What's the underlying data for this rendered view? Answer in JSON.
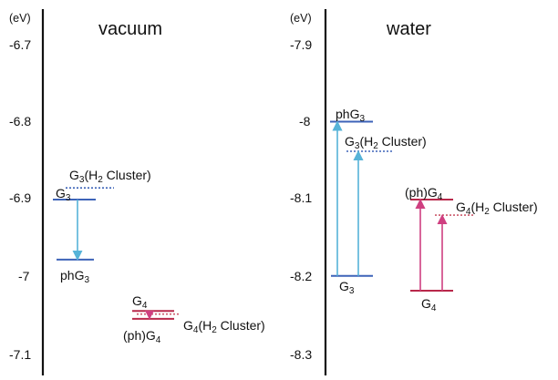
{
  "chart_data": [
    {
      "type": "energy-level diagram",
      "panel": "vacuum",
      "title": "vacuum",
      "unit_label": "(eV)",
      "ylim": [
        -7.1,
        -6.7
      ],
      "y_ticks": [
        "-6.7",
        "-6.8",
        "-6.9",
        "-7",
        "-7.1"
      ],
      "y_tick_values": [
        -6.7,
        -6.8,
        -6.9,
        -7.0,
        -7.1
      ],
      "colors": {
        "G3": "#3d63b8",
        "G4": "#b8284a",
        "arrow_G3": "#56b3d8",
        "arrow_G4": "#cf3f80"
      },
      "levels": [
        {
          "label": "G3",
          "value": -6.9,
          "color": "#3d63b8",
          "dashed": false
        },
        {
          "label": "G3(H2 Cluster)",
          "value": -6.885,
          "color": "#3d63b8",
          "dashed": true
        },
        {
          "label": "phG3",
          "value": -6.977,
          "color": "#3d63b8",
          "dashed": false
        },
        {
          "label": "G4",
          "value": -7.043,
          "color": "#b8284a",
          "dashed": false
        },
        {
          "label": "(ph)G4",
          "value": -7.053,
          "color": "#b8284a",
          "dashed": false
        },
        {
          "label": "G4(H2 Cluster)",
          "value": -7.047,
          "color": "#b8284a",
          "dashed": true
        }
      ],
      "arrows": [
        {
          "from": -6.9,
          "to": -6.977,
          "color": "#56b3d8"
        },
        {
          "from": -7.043,
          "to": -7.053,
          "color": "#cf3f80"
        }
      ]
    },
    {
      "type": "energy-level diagram",
      "panel": "water",
      "title": "water",
      "unit_label": "(eV)",
      "ylim": [
        -8.3,
        -7.9
      ],
      "y_ticks": [
        "-7.9",
        "-8",
        "-8.1",
        "-8.2",
        "-8.3"
      ],
      "y_tick_values": [
        -7.9,
        -8.0,
        -8.1,
        -8.2,
        -8.3
      ],
      "colors": {
        "G3": "#3d63b8",
        "G4": "#b8284a",
        "arrow_G3": "#56b3d8",
        "arrow_G4": "#cf3f80"
      },
      "levels": [
        {
          "label": "phG3",
          "value": -8.0,
          "color": "#3d63b8",
          "dashed": false
        },
        {
          "label": "G3(H2 Cluster)",
          "value": -8.038,
          "color": "#3d63b8",
          "dashed": true
        },
        {
          "label": "G3",
          "value": -8.198,
          "color": "#3d63b8",
          "dashed": false
        },
        {
          "label": "(ph)G4",
          "value": -8.1,
          "color": "#b8284a",
          "dashed": false
        },
        {
          "label": "G4(H2 Cluster)",
          "value": -8.12,
          "color": "#b8284a",
          "dashed": true
        },
        {
          "label": "G4",
          "value": -8.217,
          "color": "#b8284a",
          "dashed": false
        }
      ],
      "arrows": [
        {
          "from": -8.198,
          "to": -8.0,
          "color": "#56b3d8"
        },
        {
          "from": -8.198,
          "to": -8.038,
          "color": "#56b3d8"
        },
        {
          "from": -8.217,
          "to": -8.1,
          "color": "#cf3f80"
        },
        {
          "from": -8.217,
          "to": -8.12,
          "color": "#cf3f80"
        }
      ]
    }
  ]
}
